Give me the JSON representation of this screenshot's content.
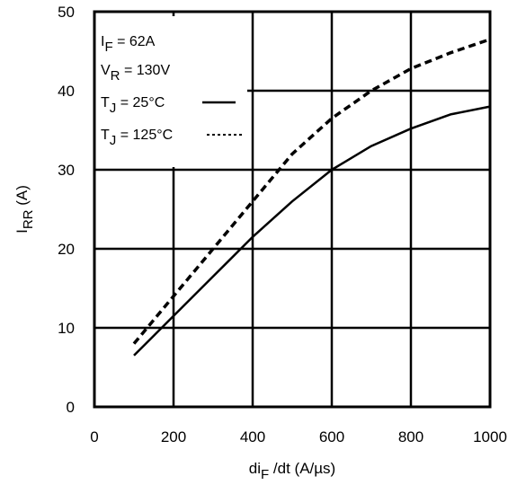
{
  "chart_data": {
    "type": "line",
    "xlabel": "di_F /dt (A/µs)",
    "xlabel_parts": {
      "base": "di",
      "sub": "F",
      "rest": " /dt (A/µs)"
    },
    "ylabel": "I_RR (A)",
    "ylabel_parts": {
      "base": "I",
      "sub": "RR",
      "rest": " (A)"
    },
    "xlim": [
      0,
      1000
    ],
    "ylim": [
      0,
      50
    ],
    "xticks": [
      0,
      200,
      400,
      600,
      800,
      1000
    ],
    "yticks": [
      0,
      10,
      20,
      30,
      40,
      50
    ],
    "grid": true,
    "legend_placement": "top-left (inside plot)",
    "conditions": [
      {
        "base": "I",
        "sub": "F",
        "rest": " = 62A"
      },
      {
        "base": "V",
        "sub": "R",
        "rest": " = 130V"
      }
    ],
    "series": [
      {
        "label_parts": {
          "base": "T",
          "sub": "J",
          "rest": " = 25°C"
        },
        "style": "solid",
        "x": [
          100,
          200,
          300,
          400,
          500,
          600,
          700,
          800,
          900,
          1000
        ],
        "y": [
          6.5,
          11.5,
          16.5,
          21.5,
          26.0,
          30.0,
          33.0,
          35.2,
          37.0,
          38.0
        ]
      },
      {
        "label_parts": {
          "base": "T",
          "sub": "J",
          "rest": " = 125°C"
        },
        "style": "dashed",
        "x": [
          100,
          200,
          300,
          400,
          500,
          600,
          700,
          800,
          900,
          1000
        ],
        "y": [
          8.0,
          14.0,
          20.0,
          26.0,
          32.0,
          36.5,
          40.0,
          42.8,
          44.8,
          46.5
        ]
      }
    ]
  }
}
